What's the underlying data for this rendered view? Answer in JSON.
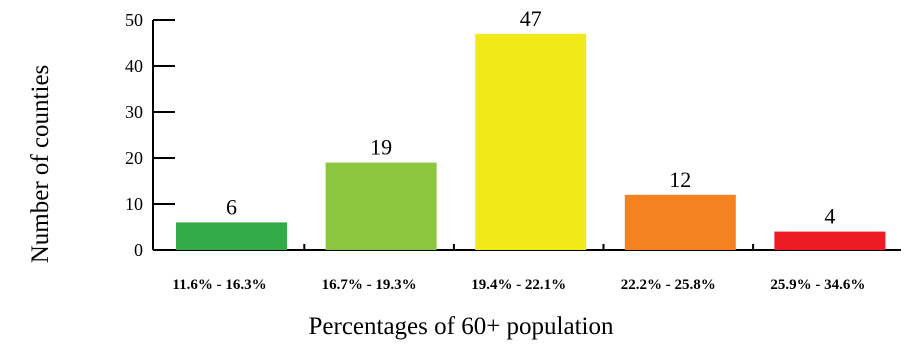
{
  "chart_data": {
    "type": "bar",
    "title": "",
    "xlabel": "Percentages of 60+ population",
    "ylabel": "Number of counties",
    "categories": [
      "11.6% - 16.3%",
      "16.7% - 19.3%",
      "19.4% - 22.1%",
      "22.2% - 25.8%",
      "25.9% - 34.6%"
    ],
    "values": [
      6,
      19,
      47,
      12,
      4
    ],
    "data_labels": [
      "6",
      "19",
      "47",
      "12",
      "4"
    ],
    "colors": [
      "#33ab46",
      "#8cc63f",
      "#f2e91a",
      "#f58220",
      "#ed1c24"
    ],
    "ylim": [
      0,
      50
    ],
    "yticks": [
      "0",
      "10",
      "20",
      "30",
      "40",
      "50"
    ],
    "grid": false,
    "legend": "none"
  }
}
